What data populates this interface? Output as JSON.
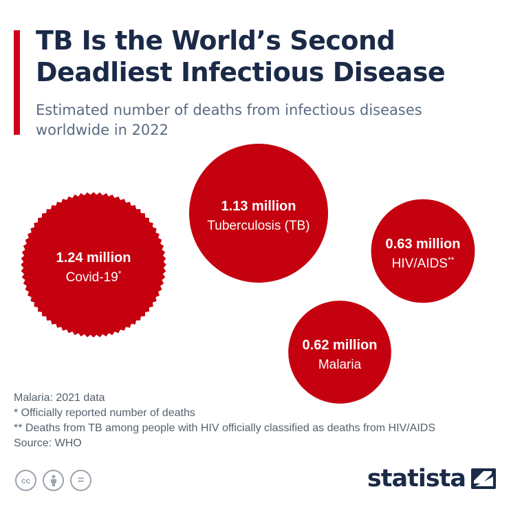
{
  "header": {
    "title_line1": "TB Is the World’s Second",
    "title_line2": "Deadliest Infectious Disease",
    "subtitle_line1": "Estimated number of deaths from infectious diseases",
    "subtitle_line2": "worldwide in 2022"
  },
  "colors": {
    "accent": "#d0021b",
    "bubble": "#c5000f",
    "title": "#1b2a47",
    "text": "#55606e"
  },
  "chart_data": {
    "type": "bubble",
    "title": "TB Is the World’s Second Deadliest Infectious Disease",
    "subtitle": "Estimated number of deaths from infectious diseases worldwide in 2022",
    "unit": "million deaths",
    "items": [
      {
        "name": "Covid-19",
        "footnote": "*",
        "value": 1.24,
        "value_label": "1.24 million",
        "style": "serrated"
      },
      {
        "name": "Tuberculosis (TB)",
        "footnote": "",
        "value": 1.13,
        "value_label": "1.13 million",
        "style": "solid"
      },
      {
        "name": "HIV/AIDS",
        "footnote": "**",
        "value": 0.63,
        "value_label": "0.63 million",
        "style": "solid"
      },
      {
        "name": "Malaria",
        "footnote": "",
        "value": 0.62,
        "value_label": "0.62 million",
        "style": "solid"
      }
    ]
  },
  "notes": {
    "line1": "Malaria: 2021 data",
    "line2": "*   Officially reported number of deaths",
    "line3": "** Deaths from TB among people with HIV officially classified as deaths from HIV/AIDS",
    "line4": "Source: WHO"
  },
  "footer": {
    "license_icons": [
      "creative-commons-icon",
      "attribution-icon",
      "no-derivatives-icon"
    ],
    "cc_label": "cc",
    "nd_label": "=",
    "logo_text": "statista"
  }
}
